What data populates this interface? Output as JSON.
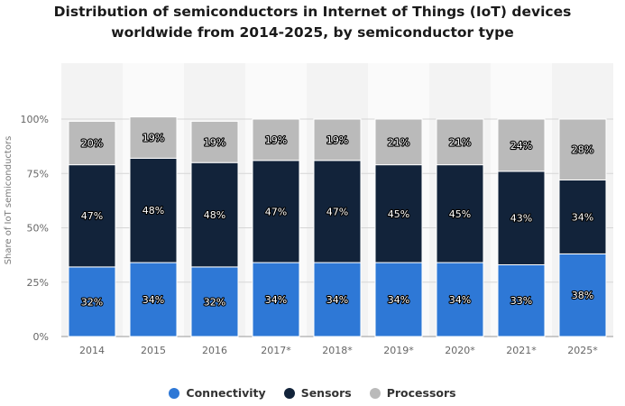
{
  "chart_data": {
    "type": "bar",
    "stacked": true,
    "title": "Distribution of semiconductors in Internet of Things (IoT) devices worldwide from 2014-2025, by semiconductor type",
    "title_lines": [
      "Distribution of semiconductors in Internet of Things (IoT) devices",
      "worldwide from 2014-2025, by semiconductor type"
    ],
    "ylabel": "Share of IoT semiconductors",
    "xlabel": "",
    "ylim": [
      0,
      100
    ],
    "y_ticks": [
      "0%",
      "25%",
      "50%",
      "75%",
      "100%"
    ],
    "y_tick_values": [
      0,
      25,
      50,
      75,
      100
    ],
    "grid": true,
    "legend_position": "bottom",
    "categories": [
      "2014",
      "2015",
      "2016",
      "2017*",
      "2018*",
      "2019*",
      "2020*",
      "2021*",
      "2025*"
    ],
    "series": [
      {
        "name": "Connectivity",
        "color": "#2e78d6",
        "values": [
          32,
          34,
          32,
          34,
          34,
          34,
          34,
          33,
          38
        ]
      },
      {
        "name": "Sensors",
        "color": "#12233a",
        "values": [
          47,
          48,
          48,
          47,
          47,
          45,
          45,
          43,
          34
        ]
      },
      {
        "name": "Processors",
        "color": "#bababa",
        "values": [
          20,
          19,
          19,
          19,
          19,
          21,
          21,
          24,
          28
        ]
      }
    ],
    "data_label_suffix": "%"
  }
}
